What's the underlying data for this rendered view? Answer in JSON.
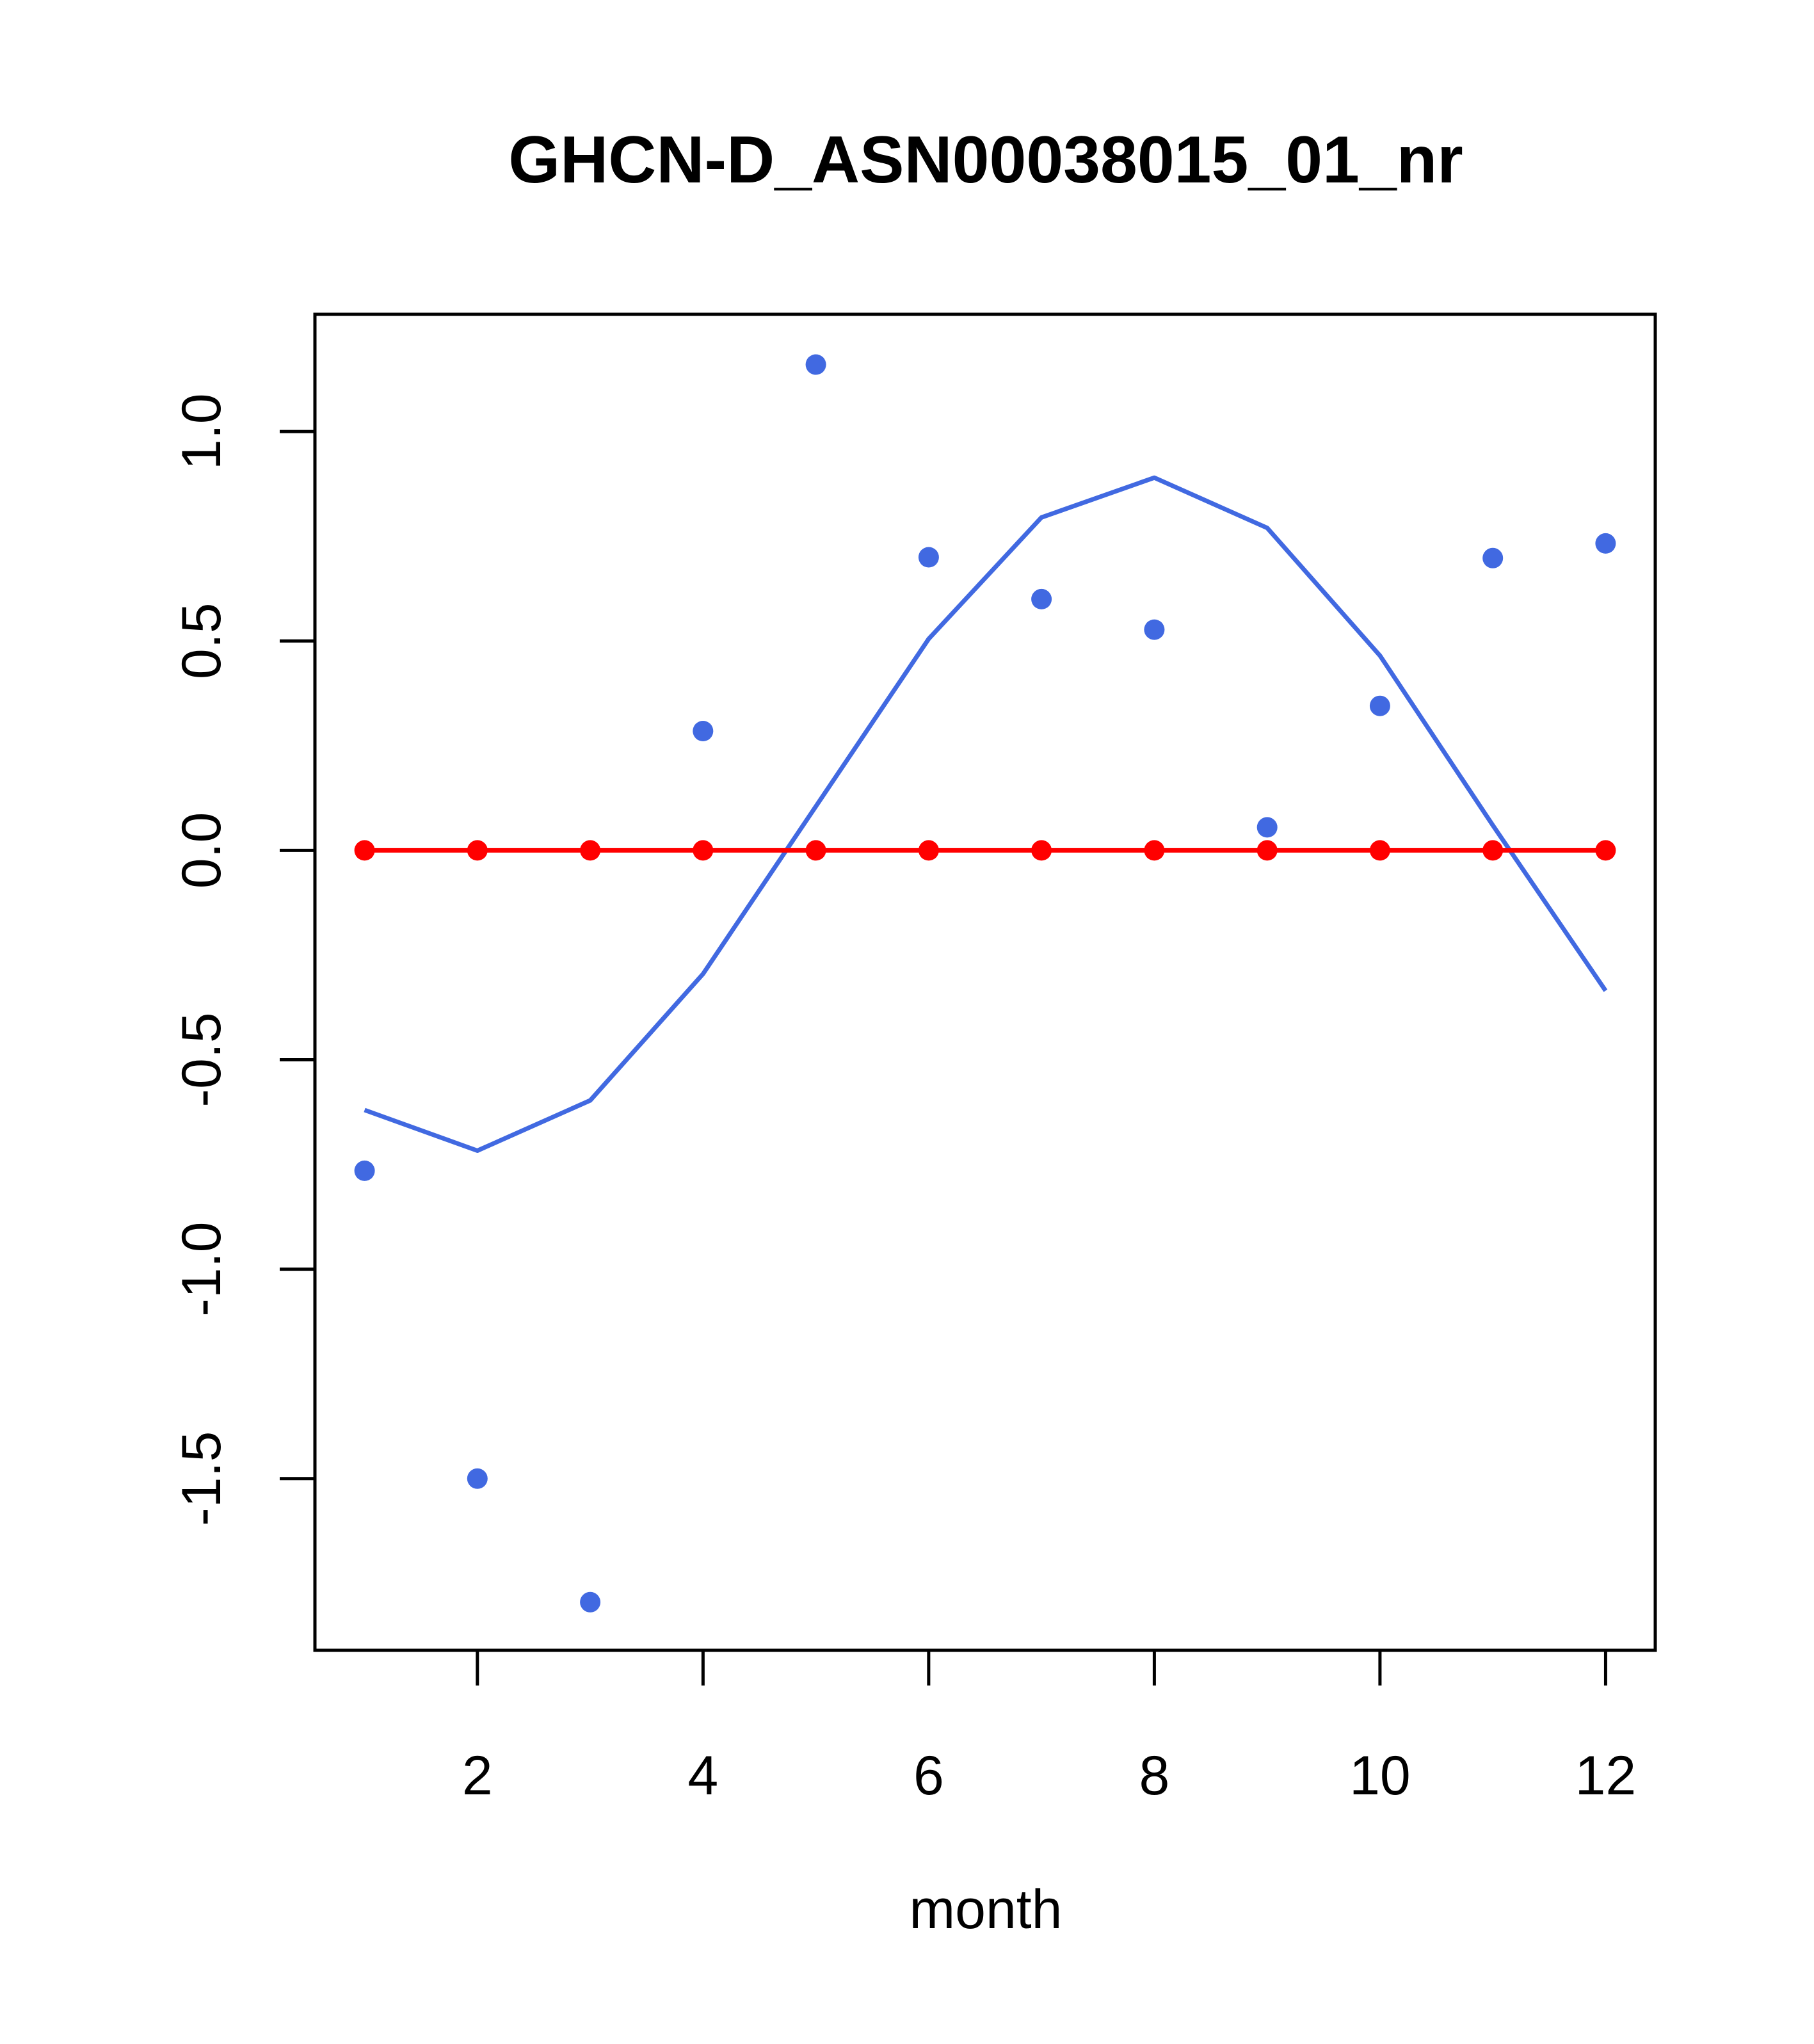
{
  "chart_data": {
    "type": "line",
    "title": "GHCN-D_ASN00038015_01_nr",
    "xlabel": "month",
    "ylabel": "",
    "xlim": [
      0.56,
      12.44
    ],
    "ylim": [
      -1.91,
      1.28
    ],
    "x_ticks": [
      2,
      4,
      6,
      8,
      10,
      12
    ],
    "y_ticks": [
      -1.5,
      -1.0,
      -0.5,
      0.0,
      0.5,
      1.0
    ],
    "x_tick_labels": [
      "2",
      "4",
      "6",
      "8",
      "10",
      "12"
    ],
    "y_tick_labels": [
      "-1.5",
      "-1.0",
      "-0.5",
      "0.0",
      "0.5",
      "1.0"
    ],
    "grid": false,
    "legend": "none",
    "series": [
      {
        "style": "points",
        "color": "#4169E1",
        "x": [
          1,
          2,
          3,
          4,
          5,
          6,
          7,
          8,
          9,
          10,
          11,
          12
        ],
        "values": [
          -0.765,
          -1.5,
          -1.795,
          0.285,
          1.16,
          0.7,
          0.6,
          0.527,
          0.055,
          0.345,
          0.698,
          0.733
        ]
      },
      {
        "style": "line",
        "color": "#4169E1",
        "x": [
          1,
          2,
          3,
          4,
          5,
          6,
          7,
          8,
          9,
          10,
          11,
          12
        ],
        "values": [
          -0.62,
          -0.717,
          -0.597,
          -0.295,
          0.105,
          0.505,
          0.795,
          0.89,
          0.77,
          0.465,
          0.06,
          -0.335
        ]
      },
      {
        "style": "line+points",
        "color": "#FF0000",
        "x": [
          1,
          2,
          3,
          4,
          5,
          6,
          7,
          8,
          9,
          10,
          11,
          12
        ],
        "values": [
          0,
          0,
          0,
          0,
          0,
          0,
          0,
          0,
          0,
          0,
          0,
          0
        ]
      }
    ]
  }
}
